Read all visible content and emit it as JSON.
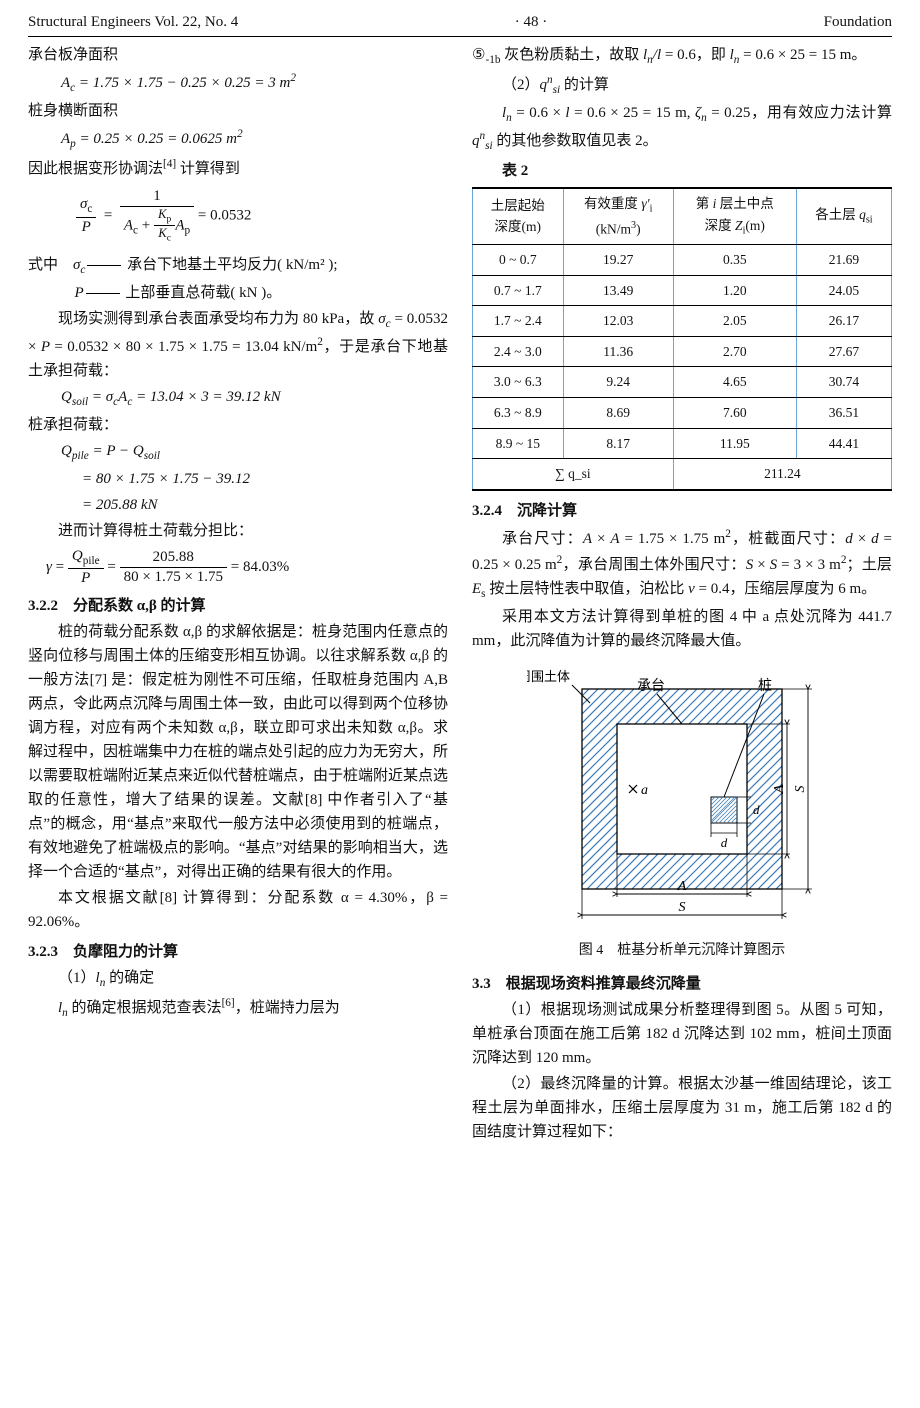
{
  "header": {
    "left": "Structural Engineers Vol. 22, No. 4",
    "center": "· 48 ·",
    "right": "Foundation"
  },
  "leftcol": {
    "l1": "承台板净面积",
    "eq_Ac": "A_c = 1.75 × 1.75 − 0.25 × 0.25 = 3 m²",
    "l2": "桩身横断面积",
    "eq_Ap": "A_p = 0.25 × 0.25 = 0.0625 m²",
    "l3a": "因此根据变形协调法",
    "l3b": "[4]",
    "l3c": " 计算得到",
    "eq_sigmaP_lhs_num": "σ_c",
    "eq_sigmaP_lhs_den": "P",
    "eq_sigmaP_mid_num": "1",
    "eq_sigmaP_mid_den_a": "A_c +",
    "eq_sigmaP_mid_den_b_num": "K_p",
    "eq_sigmaP_mid_den_b_den": "K_c",
    "eq_sigmaP_mid_den_c": "A_p",
    "eq_sigmaP_rhs": " = 0.0532",
    "def_sigma_lbl": "式中　σ_c",
    "def_sigma_text": " 承台下地基土平均反力( kN/m² );",
    "def_P_lbl": "P",
    "def_P_text": " 上部垂直总荷载( kN )。",
    "para1": "现场实测得到承台表面承受均布力为 80 kPa，故 σ_c = 0.0532 × P = 0.0532 × 80 × 1.75 × 1.75 = 13.04 kN/m²，于是承台下地基土承担荷载：",
    "eq_Qsoil": "Q_soil = σ_c A_c = 13.04 × 3 = 39.12 kN",
    "l4": "桩承担荷载：",
    "eq_Qpile1": "Q_pile = P − Q_soil",
    "eq_Qpile2": "= 80 × 1.75 × 1.75 − 39.12",
    "eq_Qpile3": "= 205.88 kN",
    "l5": "进而计算得桩土荷载分担比：",
    "eq_gamma_lhs_num": "Q_pile",
    "eq_gamma_lhs_den": "P",
    "eq_gamma_mid_num": "205.88",
    "eq_gamma_mid_den": "80 × 1.75 × 1.75",
    "eq_gamma_rhs": " = 84.03%",
    "sec322": "3.2.2　分配系数 α,β 的计算",
    "para322": "桩的荷载分配系数 α,β 的求解依据是：桩身范围内任意点的竖向位移与周围土体的压缩变形相互协调。以往求解系数 α,β 的一般方法[7] 是：假定桩为刚性不可压缩，任取桩身范围内 A,B 两点，令此两点沉降与周围土体一致，由此可以得到两个位移协调方程，对应有两个未知数 α,β，联立即可求出未知数 α,β。求解过程中，因桩端集中力在桩的端点处引起的应力为无穷大，所以需要取桩端附近某点来近似代替桩端点，由于桩端附近某点选取的任意性，增大了结果的误差。文献[8] 中作者引入了“基点”的概念，用“基点”来取代一般方法中必须使用到的桩端点，有效地避免了桩端极点的影响。“基点”对结果的影响相当大，选择一个合适的“基点”，对得出正确的结果有很大的作用。",
    "para322b": "本文根据文献[8] 计算得到：分配系数 α = 4.30%，β = 92.06%。",
    "sec323": "3.2.3　负摩阻力的计算",
    "l323a": "（1）l_n 的确定",
    "l323b": "l_n 的确定根据规范查表法[6]，桩端持力层为"
  },
  "rightcol": {
    "r1a": "⑤₋₁ᵦ 灰色粉质黏土，故取 l_n / l = 0.6，即 l_n = 0.6 × 25 = 15 m。",
    "r2": "（2）qⁿ_si 的计算",
    "r3": "l_n = 0.6 × l = 0.6 × 25 = 15 m, ζ_n = 0.25，用有效应力法计算 qⁿ_si 的其他参数取值见表 2。",
    "tblcap": "表 2",
    "tbl": {
      "header": [
        "土层起始深度(m)",
        "有效重度 γ′_i (kN/m³)",
        "第 i 层土中点深度 Z_i(m)",
        "各土层 q_si"
      ],
      "rows": [
        [
          "0 ~ 0.7",
          "19.27",
          "0.35",
          "21.69"
        ],
        [
          "0.7 ~ 1.7",
          "13.49",
          "1.20",
          "24.05"
        ],
        [
          "1.7 ~ 2.4",
          "12.03",
          "2.05",
          "26.17"
        ],
        [
          "2.4 ~ 3.0",
          "11.36",
          "2.70",
          "27.67"
        ],
        [
          "3.0 ~ 6.3",
          "9.24",
          "4.65",
          "30.74"
        ],
        [
          "6.3 ~ 8.9",
          "8.69",
          "7.60",
          "36.51"
        ],
        [
          "8.9 ~ 15",
          "8.17",
          "11.95",
          "44.41"
        ]
      ],
      "sum_label": "∑ q_si",
      "sum_value": "211.24"
    },
    "sec324": "3.2.4　沉降计算",
    "r4": "承台尺寸：A × A = 1.75 × 1.75 m²，桩截面尺寸：d × d = 0.25 × 0.25 m²，承台周围土体外围尺寸：S × S = 3 × 3 m²；土层 E_s 按土层特性表中取值，泊松比 ν = 0.4，压缩层厚度为 6 m。",
    "r5": "采用本文方法计算得到单桩的图 4 中 a 点处沉降为 441.7 mm，此沉降值为计算的最终沉降最大值。",
    "fig4": {
      "caption": "图 4　桩基分析单元沉降计算图示",
      "labels": {
        "cap": "承台",
        "pile": "桩",
        "soil": "承台周围土体",
        "a": "a",
        "d": "d",
        "A": "A",
        "S": "S"
      },
      "geom": {
        "S": 200,
        "A": 130,
        "d": 26,
        "margin": 35,
        "hatch_spacing": 9,
        "hatch_color": "#3b7bb8",
        "line_color": "#000"
      }
    },
    "sec33": "3.3　根据现场资料推算最终沉降量",
    "r6": "（1）根据现场测试成果分析整理得到图 5。从图 5 可知，单桩承台顶面在施工后第 182 d 沉降达到 102 mm，桩间土顶面沉降达到 120 mm。",
    "r7": "（2）最终沉降量的计算。根据太沙基一维固结理论，该工程土层为单面排水，压缩土层厚度为 31 m，施工后第 182 d 的固结度计算过程如下："
  }
}
